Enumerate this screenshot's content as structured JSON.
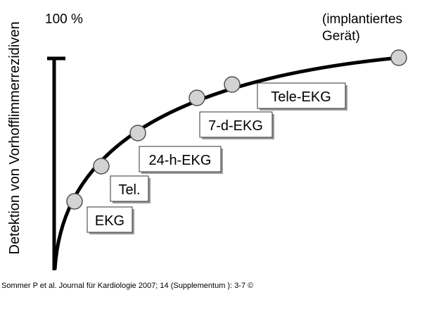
{
  "figure": {
    "y_axis_title": "Detektion von Vorhofflimmerrezidiven",
    "top_label": "100 %",
    "device_label_line1": "(implantiertes",
    "device_label_line2": "Gerät)",
    "boxes": [
      {
        "id": "ekg",
        "label": "EKG"
      },
      {
        "id": "tel",
        "label": "Tel."
      },
      {
        "id": "24h",
        "label": "24-h-EKG"
      },
      {
        "id": "7d",
        "label": "7-d-EKG"
      },
      {
        "id": "tele",
        "label": "Tele-EKG"
      }
    ],
    "colors": {
      "curve": "#000000",
      "marker_fill": "#d3d3d3",
      "marker_stroke": "#505050",
      "box_shadow": "#9a9a9a"
    }
  },
  "citation": "Sommer P et al. Journal für Kardiologie 2007; 14 (Supplementum ): 3-7 ©"
}
